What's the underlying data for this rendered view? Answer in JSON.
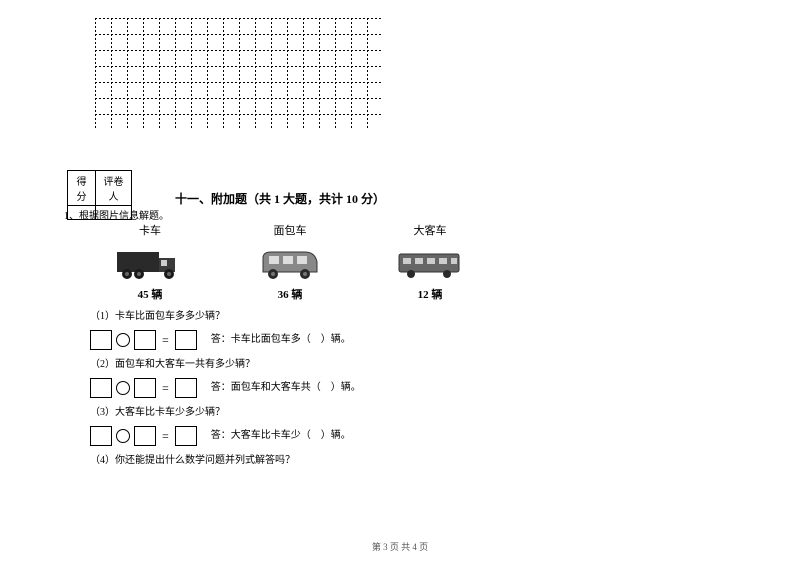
{
  "grid": {
    "cols": 18,
    "rows": 7,
    "cellSize": 16
  },
  "scoreTable": {
    "col1": "得分",
    "col2": "评卷人"
  },
  "section": {
    "title": "十一、附加题（共 1 大题，共计 10 分）"
  },
  "question": {
    "stem": "1、根据图片信息解题。",
    "vehicles": [
      {
        "label": "卡车",
        "count": "45 辆"
      },
      {
        "label": "面包车",
        "count": "36 辆"
      },
      {
        "label": "大客车",
        "count": "12 辆"
      }
    ],
    "subs": [
      {
        "num": "（1）",
        "text": "卡车比面包车多多少辆？",
        "answer": "答：卡车比面包车多（　）辆。"
      },
      {
        "num": "（2）",
        "text": "面包车和大客车一共有多少辆？",
        "answer": "答：面包车和大客车共（　）辆。"
      },
      {
        "num": "（3）",
        "text": "大客车比卡车少多少辆？",
        "answer": "答：大客车比卡车少（　）辆。"
      },
      {
        "num": "（4）",
        "text": "你还能提出什么数学问题并列式解答吗？"
      }
    ]
  },
  "footer": "第 3 页 共 4 页"
}
